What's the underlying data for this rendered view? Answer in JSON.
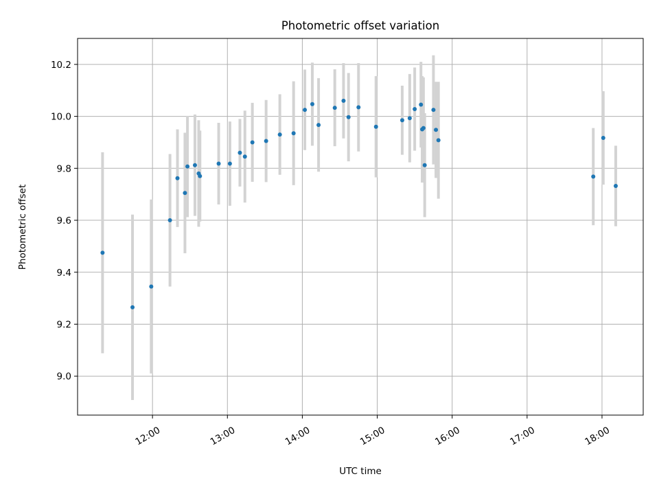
{
  "chart_data": {
    "type": "scatter",
    "title": "Photometric offset variation",
    "xlabel": "UTC time",
    "ylabel": "Photometric offset",
    "xlim": [
      "11:00",
      "18:33"
    ],
    "ylim": [
      8.85,
      10.3
    ],
    "x_ticks": [
      "12:00",
      "13:00",
      "14:00",
      "15:00",
      "16:00",
      "17:00",
      "18:00"
    ],
    "y_ticks": [
      9.0,
      9.2,
      9.4,
      9.6,
      9.8,
      10.0,
      10.2
    ],
    "y_tick_labels": [
      "9.0",
      "9.2",
      "9.4",
      "9.6",
      "9.8",
      "10.0",
      "10.2"
    ],
    "grid": true,
    "colors": {
      "point": "#1f77b4",
      "errorbar": "#d3d3d3",
      "grid": "#b0b0b0"
    },
    "series": [
      {
        "points": [
          {
            "x": "11:20",
            "y": 9.475,
            "err": 0.387
          },
          {
            "x": "11:44",
            "y": 9.265,
            "err": 0.357
          },
          {
            "x": "11:59",
            "y": 9.345,
            "err": 0.335
          },
          {
            "x": "12:14",
            "y": 9.6,
            "err": 0.255
          },
          {
            "x": "12:20",
            "y": 9.762,
            "err": 0.188
          },
          {
            "x": "12:26",
            "y": 9.705,
            "err": 0.232
          },
          {
            "x": "12:28",
            "y": 9.807,
            "err": 0.195
          },
          {
            "x": "12:34",
            "y": 9.812,
            "err": 0.195
          },
          {
            "x": "12:37",
            "y": 9.78,
            "err": 0.205
          },
          {
            "x": "12:38",
            "y": 9.77,
            "err": 0.175
          },
          {
            "x": "12:53",
            "y": 9.818,
            "err": 0.157
          },
          {
            "x": "13:02",
            "y": 9.818,
            "err": 0.162
          },
          {
            "x": "13:10",
            "y": 9.86,
            "err": 0.13
          },
          {
            "x": "13:14",
            "y": 9.845,
            "err": 0.177
          },
          {
            "x": "13:20",
            "y": 9.9,
            "err": 0.152
          },
          {
            "x": "13:31",
            "y": 9.905,
            "err": 0.158
          },
          {
            "x": "13:42",
            "y": 9.93,
            "err": 0.155
          },
          {
            "x": "13:53",
            "y": 9.935,
            "err": 0.2
          },
          {
            "x": "14:02",
            "y": 10.025,
            "err": 0.155
          },
          {
            "x": "14:08",
            "y": 10.047,
            "err": 0.16
          },
          {
            "x": "14:13",
            "y": 9.967,
            "err": 0.18
          },
          {
            "x": "14:26",
            "y": 10.033,
            "err": 0.148
          },
          {
            "x": "14:33",
            "y": 10.06,
            "err": 0.145
          },
          {
            "x": "14:37",
            "y": 9.997,
            "err": 0.17
          },
          {
            "x": "14:45",
            "y": 10.035,
            "err": 0.17
          },
          {
            "x": "14:59",
            "y": 9.96,
            "err": 0.195
          },
          {
            "x": "15:20",
            "y": 9.985,
            "err": 0.133
          },
          {
            "x": "15:26",
            "y": 9.993,
            "err": 0.17
          },
          {
            "x": "15:30",
            "y": 10.028,
            "err": 0.16
          },
          {
            "x": "15:35",
            "y": 10.045,
            "err": 0.165
          },
          {
            "x": "15:36",
            "y": 9.95,
            "err": 0.205
          },
          {
            "x": "15:37",
            "y": 9.955,
            "err": 0.195
          },
          {
            "x": "15:38",
            "y": 9.812,
            "err": 0.2
          },
          {
            "x": "15:45",
            "y": 10.025,
            "err": 0.21
          },
          {
            "x": "15:47",
            "y": 9.948,
            "err": 0.185
          },
          {
            "x": "15:49",
            "y": 9.908,
            "err": 0.225
          },
          {
            "x": "17:53",
            "y": 9.768,
            "err": 0.187
          },
          {
            "x": "18:01",
            "y": 9.917,
            "err": 0.18
          },
          {
            "x": "18:11",
            "y": 9.732,
            "err": 0.155
          }
        ]
      }
    ]
  }
}
